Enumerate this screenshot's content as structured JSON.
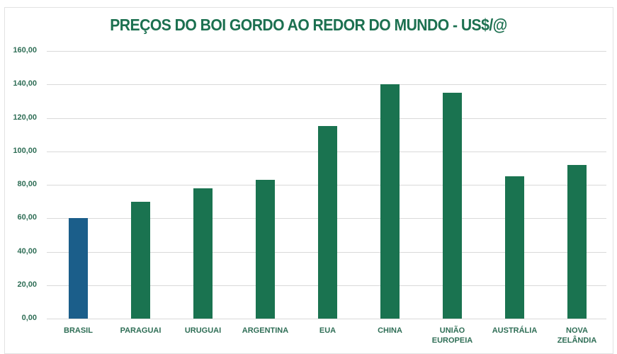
{
  "chart_data": {
    "type": "bar",
    "title": "PREÇOS DO BOI GORDO AO REDOR DO MUNDO - US$/@",
    "xlabel": "",
    "ylabel": "",
    "ylim": [
      0,
      160
    ],
    "grid": true,
    "legend": null,
    "y_ticks": [
      "0,00",
      "20,00",
      "40,00",
      "60,00",
      "80,00",
      "100,00",
      "120,00",
      "140,00",
      "160,00"
    ],
    "categories": [
      "BRASIL",
      "PARAGUAI",
      "URUGUAI",
      "ARGENTINA",
      "EUA",
      "CHINA",
      "UNIÃO EUROPEIA",
      "AUSTRÁLIA",
      "NOVA ZELÂNDIA"
    ],
    "values": [
      60,
      70,
      78,
      83,
      115,
      140,
      135,
      85,
      92
    ],
    "colors": {
      "highlight": "#1b5e8a",
      "default": "#1a7350",
      "title": "#1c7050",
      "axis_text": "#2f6e56",
      "gridline": "#d9d9d9"
    },
    "highlight_index": 0
  }
}
